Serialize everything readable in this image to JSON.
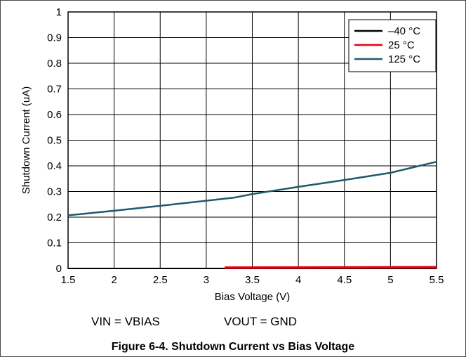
{
  "chart_data": {
    "type": "line",
    "title": "Figure 6-4. Shutdown Current vs Bias Voltage",
    "xlabel": "Bias Voltage (V)",
    "ylabel": "Shutdown Current (uA)",
    "xlim": [
      1.5,
      5.5
    ],
    "ylim": [
      0,
      1
    ],
    "xticks": [
      1.5,
      2,
      2.5,
      3,
      3.5,
      4,
      4.5,
      5,
      5.5
    ],
    "yticks": [
      0,
      0.1,
      0.2,
      0.3,
      0.4,
      0.5,
      0.6,
      0.7,
      0.8,
      0.9,
      1
    ],
    "xtick_labels": [
      "1.5",
      "2",
      "2.5",
      "3",
      "3.5",
      "4",
      "4.5",
      "5",
      "5.5"
    ],
    "ytick_labels": [
      "0",
      "0.1",
      "0.2",
      "0.3",
      "0.4",
      "0.5",
      "0.6",
      "0.7",
      "0.8",
      "0.9",
      "1"
    ],
    "grid": true,
    "legend_position": "top-right",
    "series": [
      {
        "name": "–40 °C",
        "color": "#000000",
        "x": [
          1.5,
          5.5
        ],
        "y": [
          0,
          0
        ]
      },
      {
        "name": "25 °C",
        "color": "#e8000b",
        "x": [
          3.2,
          5.5
        ],
        "y": [
          0.003,
          0.005
        ]
      },
      {
        "name": "125 °C",
        "color": "#1e5a6e",
        "x": [
          1.5,
          2.0,
          2.5,
          3.0,
          3.3,
          3.5,
          4.0,
          4.5,
          5.0,
          5.5
        ],
        "y": [
          0.207,
          0.225,
          0.244,
          0.264,
          0.276,
          0.29,
          0.318,
          0.345,
          0.373,
          0.416
        ]
      }
    ],
    "annotations": [
      "VIN = VBIAS",
      "VOUT = GND"
    ]
  }
}
